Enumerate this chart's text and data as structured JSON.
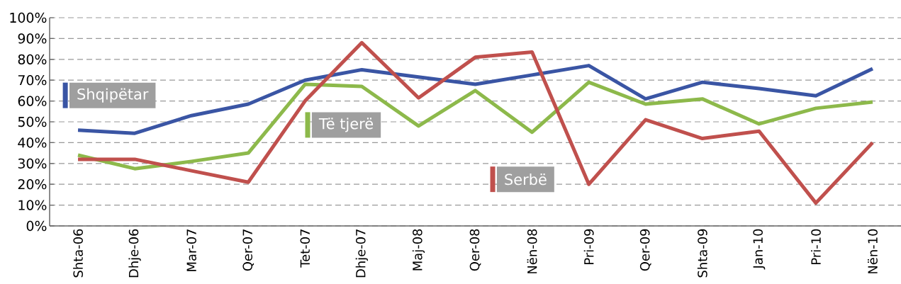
{
  "chart_data": {
    "type": "line",
    "categories": [
      "Shta-06",
      "Dhje-06",
      "Mar-07",
      "Qer-07",
      "Tet-07",
      "Dhje-07",
      "Maj-08",
      "Qer-08",
      "Nën-08",
      "Pri-09",
      "Qer-09",
      "Shta-09",
      "Jan-10",
      "Pri-10",
      "Nën-10"
    ],
    "series": [
      {
        "name": "Shqipëtar",
        "color": "#3a55a4",
        "values": [
          46,
          44.5,
          53,
          58.5,
          70,
          75,
          71.5,
          68,
          72.5,
          77,
          61,
          69,
          66,
          62.5,
          75.5
        ]
      },
      {
        "name": "Të tjerë",
        "color": "#8db94b",
        "values": [
          34,
          27.5,
          31,
          35,
          68,
          67,
          48,
          65,
          45,
          69,
          58.5,
          61,
          49,
          56.5,
          59.5
        ]
      },
      {
        "name": "Serbë",
        "color": "#c0504d",
        "values": [
          32,
          32,
          26.5,
          21,
          60,
          88,
          61.5,
          81,
          83.5,
          20,
          51,
          42,
          45.5,
          11,
          40
        ]
      }
    ],
    "ylim": [
      0,
      100
    ],
    "yticks": [
      {
        "value": 0,
        "label": "0%"
      },
      {
        "value": 10,
        "label": "10%"
      },
      {
        "value": 20,
        "label": "20%"
      },
      {
        "value": 30,
        "label": "30%"
      },
      {
        "value": 40,
        "label": "40%"
      },
      {
        "value": 50,
        "label": "50%"
      },
      {
        "value": 60,
        "label": "60%"
      },
      {
        "value": 70,
        "label": "70%"
      },
      {
        "value": 80,
        "label": "80%"
      },
      {
        "value": 90,
        "label": "90%"
      },
      {
        "value": 100,
        "label": "100%"
      }
    ],
    "grid": "y",
    "legend": "left",
    "marker": "none",
    "line_style": "solid"
  }
}
